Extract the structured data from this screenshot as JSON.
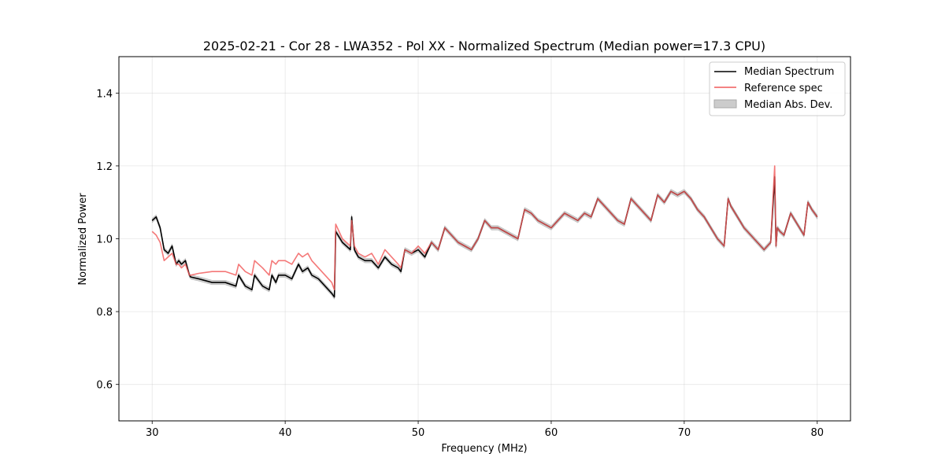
{
  "chart_data": {
    "type": "line",
    "title": "2025-02-21 - Cor 28 - LWA352 - Pol XX - Normalized Spectrum (Median power=17.3 CPU)",
    "xlabel": "Frequency (MHz)",
    "ylabel": "Normalized Power",
    "xlim": [
      27.5,
      82.5
    ],
    "ylim": [
      0.5,
      1.5
    ],
    "xticks": [
      30,
      40,
      50,
      60,
      70,
      80
    ],
    "xtick_labels": [
      "30",
      "40",
      "50",
      "60",
      "70",
      "80"
    ],
    "yticks": [
      0.6,
      0.8,
      1.0,
      1.2,
      1.4
    ],
    "ytick_labels": [
      "0.6",
      "0.8",
      "1.0",
      "1.2",
      "1.4"
    ],
    "grid": true,
    "legend_position": "top-right",
    "series": [
      {
        "name": "Median Spectrum",
        "color": "#000000",
        "x": [
          30.0,
          30.3,
          30.6,
          30.9,
          31.2,
          31.5,
          31.8,
          32.0,
          32.2,
          32.5,
          32.8,
          32.9,
          33.5,
          34.5,
          35.5,
          36.3,
          36.5,
          37.0,
          37.5,
          37.7,
          38.3,
          38.8,
          39.0,
          39.3,
          39.5,
          40.0,
          40.5,
          41.0,
          41.3,
          41.7,
          42.0,
          42.5,
          43.0,
          43.5,
          43.7,
          43.8,
          44.3,
          44.9,
          45.0,
          45.2,
          45.5,
          46.0,
          46.5,
          47.0,
          47.5,
          48.0,
          48.5,
          48.7,
          49.0,
          49.5,
          50.0,
          50.5,
          51.0,
          51.5,
          52.0,
          52.5,
          53.0,
          53.5,
          54.0,
          54.5,
          55.0,
          55.5,
          56.0,
          56.5,
          57.0,
          57.5,
          58.0,
          58.5,
          59.0,
          59.5,
          60.0,
          60.5,
          61.0,
          61.5,
          62.0,
          62.5,
          63.0,
          63.5,
          64.0,
          64.5,
          65.0,
          65.5,
          66.0,
          66.5,
          67.0,
          67.5,
          68.0,
          68.5,
          69.0,
          69.5,
          70.0,
          70.5,
          71.0,
          71.5,
          72.0,
          72.5,
          73.0,
          73.3,
          73.5,
          74.0,
          74.5,
          75.0,
          75.5,
          76.0,
          76.5,
          76.8,
          76.9,
          77.0,
          77.2,
          77.5,
          78.0,
          78.5,
          79.0,
          79.3,
          79.6,
          80.0
        ],
        "values": [
          1.05,
          1.06,
          1.03,
          0.97,
          0.96,
          0.98,
          0.93,
          0.94,
          0.93,
          0.94,
          0.9,
          0.895,
          0.89,
          0.88,
          0.88,
          0.87,
          0.9,
          0.87,
          0.86,
          0.9,
          0.87,
          0.86,
          0.9,
          0.88,
          0.9,
          0.9,
          0.89,
          0.93,
          0.91,
          0.92,
          0.9,
          0.89,
          0.87,
          0.85,
          0.84,
          1.02,
          0.99,
          0.97,
          1.06,
          0.97,
          0.95,
          0.94,
          0.94,
          0.92,
          0.95,
          0.93,
          0.92,
          0.91,
          0.97,
          0.96,
          0.97,
          0.95,
          0.99,
          0.97,
          1.03,
          1.01,
          0.99,
          0.98,
          0.97,
          1.0,
          1.05,
          1.03,
          1.03,
          1.02,
          1.01,
          1.0,
          1.08,
          1.07,
          1.05,
          1.04,
          1.03,
          1.05,
          1.07,
          1.06,
          1.05,
          1.07,
          1.06,
          1.11,
          1.09,
          1.07,
          1.05,
          1.04,
          1.11,
          1.09,
          1.07,
          1.05,
          1.12,
          1.1,
          1.13,
          1.12,
          1.13,
          1.11,
          1.08,
          1.06,
          1.03,
          1.0,
          0.98,
          1.11,
          1.09,
          1.06,
          1.03,
          1.01,
          0.99,
          0.97,
          0.99,
          1.17,
          0.98,
          1.03,
          1.02,
          1.01,
          1.07,
          1.04,
          1.01,
          1.1,
          1.08,
          1.06
        ]
      },
      {
        "name": "Reference spec",
        "color": "#f15a5a",
        "x": [
          30.0,
          30.3,
          30.6,
          30.9,
          31.2,
          31.5,
          31.8,
          32.0,
          32.2,
          32.5,
          32.8,
          32.9,
          33.5,
          34.5,
          35.5,
          36.3,
          36.5,
          37.0,
          37.5,
          37.7,
          38.3,
          38.8,
          39.0,
          39.3,
          39.5,
          40.0,
          40.5,
          41.0,
          41.3,
          41.7,
          42.0,
          42.5,
          43.0,
          43.5,
          43.7,
          43.8,
          44.3,
          44.9,
          45.0,
          45.2,
          45.5,
          46.0,
          46.5,
          47.0,
          47.5,
          48.0,
          48.5,
          48.7,
          49.0,
          49.5,
          50.0,
          50.5,
          51.0,
          51.5,
          52.0,
          52.5,
          53.0,
          53.5,
          54.0,
          54.5,
          55.0,
          55.5,
          56.0,
          56.5,
          57.0,
          57.5,
          58.0,
          58.5,
          59.0,
          59.5,
          60.0,
          60.5,
          61.0,
          61.5,
          62.0,
          62.5,
          63.0,
          63.5,
          64.0,
          64.5,
          65.0,
          65.5,
          66.0,
          66.5,
          67.0,
          67.5,
          68.0,
          68.5,
          69.0,
          69.5,
          70.0,
          70.5,
          71.0,
          71.5,
          72.0,
          72.5,
          73.0,
          73.3,
          73.5,
          74.0,
          74.5,
          75.0,
          75.5,
          76.0,
          76.5,
          76.8,
          76.9,
          77.0,
          77.2,
          77.5,
          78.0,
          78.5,
          79.0,
          79.3,
          79.6,
          80.0
        ],
        "values": [
          1.02,
          1.01,
          0.99,
          0.94,
          0.95,
          0.96,
          0.93,
          0.93,
          0.92,
          0.93,
          0.9,
          0.9,
          0.905,
          0.91,
          0.91,
          0.9,
          0.93,
          0.91,
          0.9,
          0.94,
          0.92,
          0.9,
          0.94,
          0.93,
          0.94,
          0.94,
          0.93,
          0.96,
          0.95,
          0.96,
          0.94,
          0.92,
          0.9,
          0.88,
          0.86,
          1.04,
          1.0,
          0.98,
          1.05,
          0.98,
          0.96,
          0.95,
          0.96,
          0.93,
          0.97,
          0.95,
          0.93,
          0.92,
          0.97,
          0.96,
          0.98,
          0.96,
          0.99,
          0.97,
          1.03,
          1.01,
          0.99,
          0.98,
          0.97,
          1.0,
          1.05,
          1.03,
          1.03,
          1.02,
          1.01,
          1.0,
          1.08,
          1.07,
          1.05,
          1.04,
          1.03,
          1.05,
          1.07,
          1.06,
          1.05,
          1.07,
          1.06,
          1.11,
          1.09,
          1.07,
          1.05,
          1.04,
          1.11,
          1.09,
          1.07,
          1.05,
          1.12,
          1.1,
          1.13,
          1.12,
          1.13,
          1.11,
          1.08,
          1.06,
          1.03,
          1.0,
          0.98,
          1.11,
          1.09,
          1.06,
          1.03,
          1.01,
          0.99,
          0.97,
          0.99,
          1.2,
          0.98,
          1.03,
          1.02,
          1.01,
          1.07,
          1.04,
          1.01,
          1.1,
          1.08,
          1.06
        ]
      }
    ],
    "band": {
      "name": "Median Abs. Dev.",
      "color": "#aaaaaa",
      "half_width": 0.006
    }
  }
}
